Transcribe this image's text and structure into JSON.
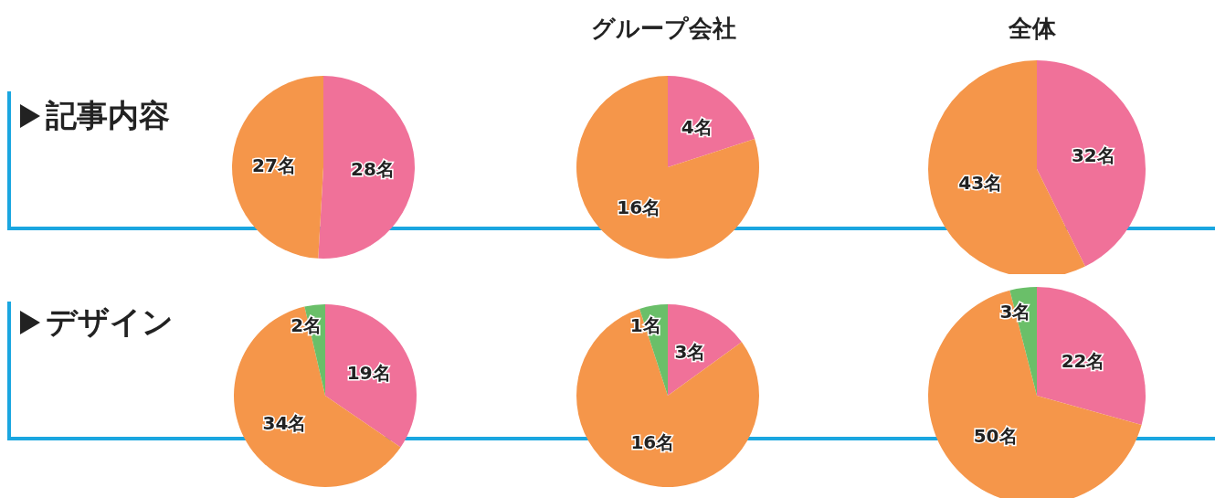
{
  "chart_data": [
    {
      "type": "pie",
      "annotations": [
        "記事内容"
      ],
      "categories": [
        null,
        null
      ],
      "values": [
        28,
        27
      ],
      "colors": [
        "#f07199",
        "#f5964a"
      ],
      "value_labels": [
        "28名",
        "27名"
      ]
    },
    {
      "type": "pie",
      "title": "グループ会社",
      "categories": [
        null,
        null
      ],
      "values": [
        4,
        16
      ],
      "colors": [
        "#f07199",
        "#f5964a"
      ],
      "value_labels": [
        "4名",
        "16名"
      ]
    },
    {
      "type": "pie",
      "title": "全体",
      "categories": [
        null,
        null
      ],
      "values": [
        32,
        43
      ],
      "colors": [
        "#f07199",
        "#f5964a"
      ],
      "value_labels": [
        "32名",
        "43名"
      ]
    },
    {
      "type": "pie",
      "annotations": [
        "デザイン"
      ],
      "categories": [
        null,
        null,
        null
      ],
      "values": [
        19,
        34,
        2
      ],
      "colors": [
        "#f07199",
        "#f5964a",
        "#6abf69"
      ],
      "value_labels": [
        "19名",
        "34名",
        "2名"
      ]
    },
    {
      "type": "pie",
      "categories": [
        null,
        null,
        null
      ],
      "values": [
        3,
        16,
        1
      ],
      "colors": [
        "#f07199",
        "#f5964a",
        "#6abf69"
      ],
      "value_labels": [
        "3名",
        "16名",
        "1名"
      ]
    },
    {
      "type": "pie",
      "categories": [
        null,
        null,
        null
      ],
      "values": [
        22,
        50,
        3
      ],
      "colors": [
        "#f07199",
        "#f5964a",
        "#6abf69"
      ],
      "value_labels": [
        "22名",
        "50名",
        "3名"
      ]
    }
  ]
}
